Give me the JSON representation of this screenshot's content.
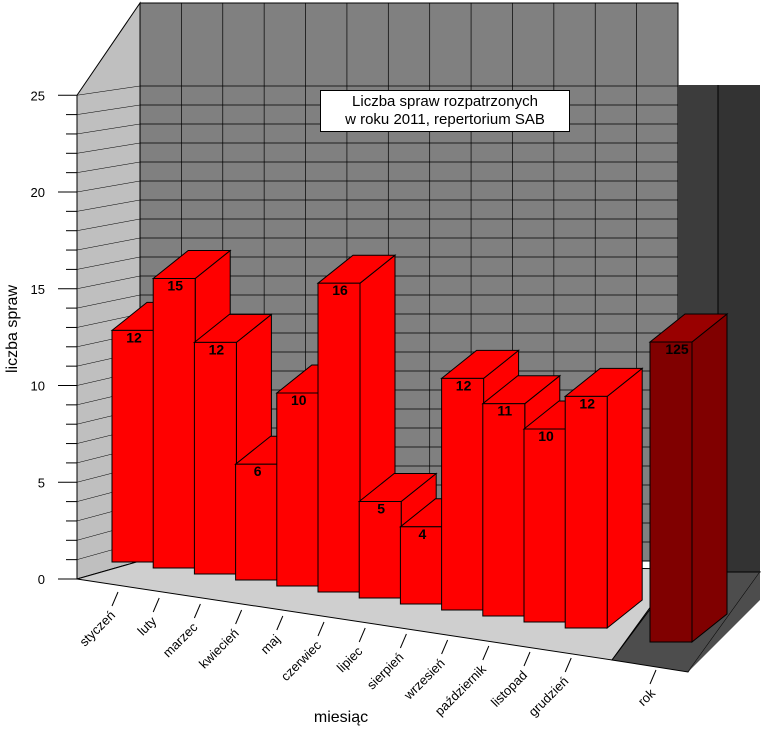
{
  "chart_data": {
    "type": "bar",
    "title_line1": "Liczba spraw rozpatrzonych",
    "title_line2": "w roku 2011, repertorium SAB",
    "xlabel": "miesiąc",
    "ylabel": "liczba spraw",
    "ylim": [
      0,
      25
    ],
    "yticks": [
      "0",
      "5",
      "10",
      "15",
      "20",
      "25"
    ],
    "categories": [
      "styczeń",
      "luty",
      "marzec",
      "kwiecień",
      "maj",
      "czerwiec",
      "lipiec",
      "sierpień",
      "wrzesień",
      "październik",
      "listopad",
      "grudzień"
    ],
    "values": [
      12,
      15,
      12,
      6,
      10,
      16,
      5,
      4,
      12,
      11,
      10,
      12
    ],
    "labels": [
      "12",
      "15",
      "12",
      "6",
      "10",
      "16",
      "5",
      "4",
      "12",
      "11",
      "10",
      "12"
    ],
    "total": {
      "category": "rok",
      "value": 125,
      "label": "125"
    },
    "bar_color": "#ff0000",
    "total_color": "#800000",
    "grid": true,
    "legend": "none"
  }
}
